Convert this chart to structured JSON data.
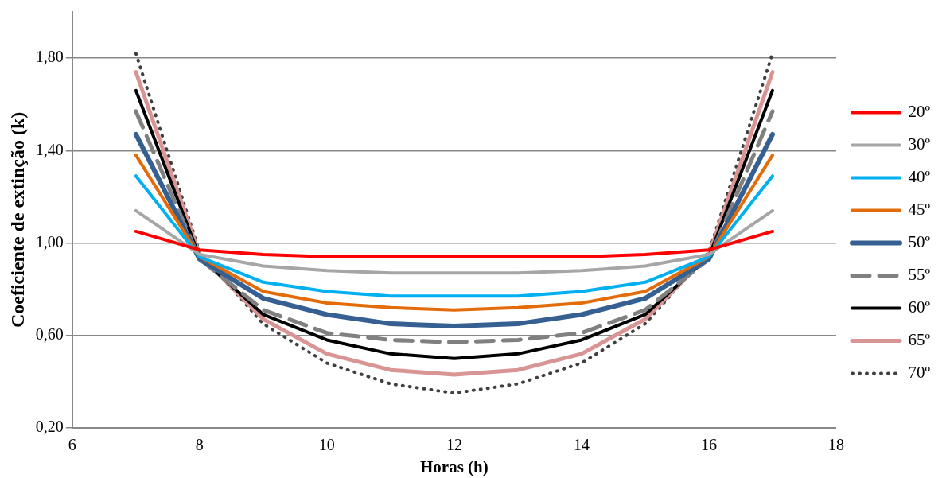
{
  "chart_data": {
    "type": "line",
    "xlabel": "Horas (h)",
    "ylabel": "Coeficiente de extinção (k)",
    "x": [
      7,
      8,
      9,
      10,
      11,
      12,
      13,
      14,
      15,
      16,
      17
    ],
    "series": [
      {
        "name": "20º",
        "color": "#ff0000",
        "line_style": "solid",
        "values": [
          1.05,
          0.97,
          0.95,
          0.94,
          0.94,
          0.94,
          0.94,
          0.94,
          0.95,
          0.97,
          1.05
        ]
      },
      {
        "name": "30º",
        "color": "#a6a6a6",
        "line_style": "solid",
        "values": [
          1.14,
          0.95,
          0.9,
          0.88,
          0.87,
          0.87,
          0.87,
          0.88,
          0.9,
          0.95,
          1.14
        ]
      },
      {
        "name": "40º",
        "color": "#00b0f0",
        "line_style": "solid",
        "values": [
          1.29,
          0.94,
          0.83,
          0.79,
          0.77,
          0.77,
          0.77,
          0.79,
          0.83,
          0.94,
          1.29
        ]
      },
      {
        "name": "45º",
        "color": "#e36c09",
        "line_style": "solid",
        "values": [
          1.38,
          0.94,
          0.79,
          0.74,
          0.72,
          0.71,
          0.72,
          0.74,
          0.79,
          0.94,
          1.38
        ]
      },
      {
        "name": "50º",
        "color": "#376092",
        "line_style": "solid",
        "values": [
          1.47,
          0.93,
          0.76,
          0.69,
          0.65,
          0.64,
          0.65,
          0.69,
          0.76,
          0.93,
          1.47
        ]
      },
      {
        "name": "55º",
        "color": "#808080",
        "line_style": "dashed",
        "values": [
          1.57,
          0.93,
          0.71,
          0.61,
          0.58,
          0.57,
          0.58,
          0.61,
          0.71,
          0.93,
          1.57
        ]
      },
      {
        "name": "60º",
        "color": "#000000",
        "line_style": "solid",
        "values": [
          1.66,
          0.94,
          0.69,
          0.58,
          0.52,
          0.5,
          0.52,
          0.58,
          0.69,
          0.94,
          1.66
        ]
      },
      {
        "name": "65º",
        "color": "#d99594",
        "line_style": "solid",
        "values": [
          1.74,
          0.95,
          0.67,
          0.52,
          0.45,
          0.43,
          0.45,
          0.52,
          0.67,
          0.95,
          1.74
        ]
      },
      {
        "name": "70º",
        "color": "#404040",
        "line_style": "dotted",
        "values": [
          1.82,
          0.96,
          0.65,
          0.48,
          0.39,
          0.35,
          0.39,
          0.48,
          0.65,
          0.96,
          1.82
        ]
      }
    ],
    "xlim": [
      6,
      18
    ],
    "xticks": [
      6,
      8,
      10,
      12,
      14,
      16,
      18
    ],
    "ylim": [
      0.2,
      2.0
    ],
    "yticks": [
      {
        "value": 0.2,
        "label": "0,20"
      },
      {
        "value": 0.6,
        "label": "0,60"
      },
      {
        "value": 1.0,
        "label": "1,00"
      },
      {
        "value": 1.4,
        "label": "1,40"
      },
      {
        "value": 1.8,
        "label": "1,80"
      }
    ],
    "grid": "y",
    "legend": "right",
    "marker": "none"
  }
}
